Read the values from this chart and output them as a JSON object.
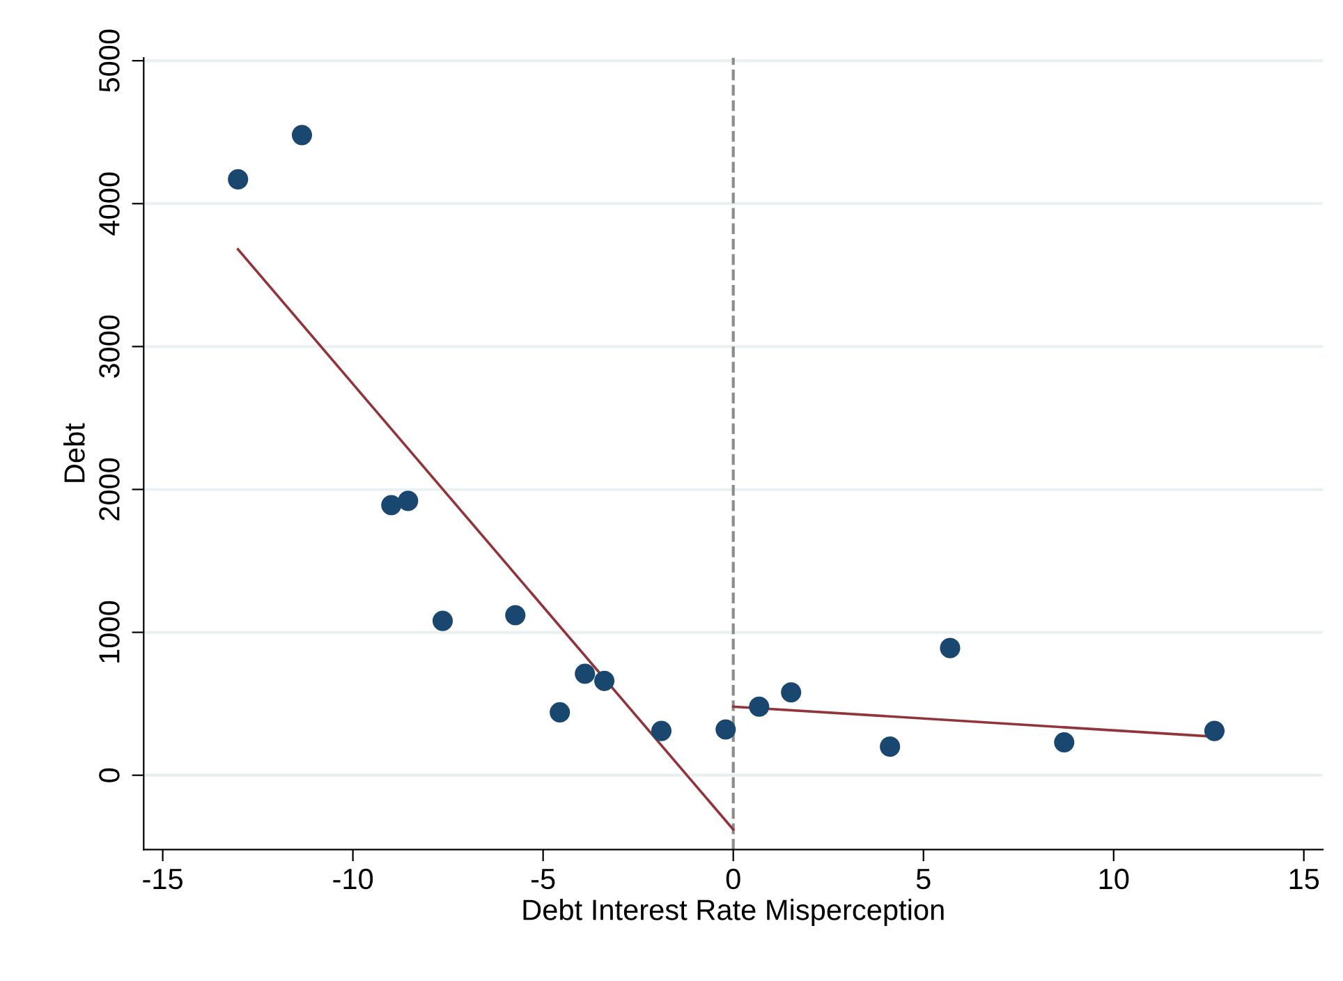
{
  "chart_data": {
    "type": "scatter",
    "xlabel": "Debt Interest Rate Misperception",
    "ylabel": "Debt",
    "xlim": [
      -15.5,
      15.5
    ],
    "xticks": [
      -15,
      -10,
      -5,
      0,
      5,
      10,
      15
    ],
    "ylim": [
      -520,
      5020
    ],
    "yticks": [
      0,
      1000,
      2000,
      3000,
      4000,
      5000
    ],
    "grid": "y",
    "legend": false,
    "series": [
      {
        "marker": "circle",
        "color": "#1a476f",
        "x": [
          -13.02,
          -11.34,
          -8.99,
          -8.55,
          -7.64,
          -5.73,
          -4.56,
          -3.9,
          -3.39,
          -1.89,
          -0.2,
          0.68,
          1.52,
          4.12,
          5.7,
          8.7,
          12.65
        ],
        "values": [
          4170,
          4480,
          1890,
          1920,
          1080,
          1120,
          440,
          710,
          660,
          310,
          320,
          480,
          580,
          200,
          890,
          230,
          310
        ]
      },
      {
        "type": "line",
        "color": "#90353b",
        "x": [
          -13.02,
          0
        ],
        "values": [
          3680,
          -380
        ]
      },
      {
        "type": "line",
        "color": "#90353b",
        "x": [
          0,
          12.65
        ],
        "values": [
          480,
          270
        ]
      }
    ],
    "ref_lines": [
      {
        "axis": "x",
        "value": 0,
        "color": "#8c8c8c",
        "line_style": "dashed"
      }
    ]
  }
}
